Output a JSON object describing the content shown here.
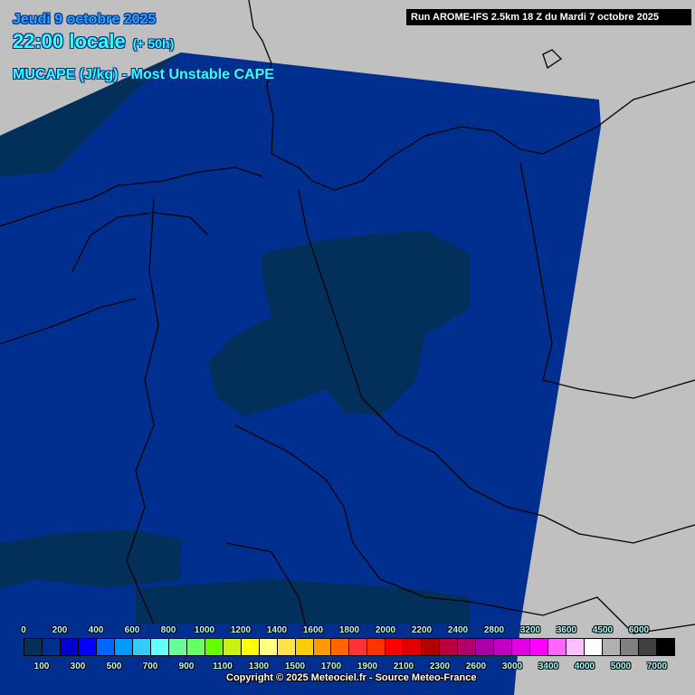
{
  "header": {
    "date": "Jeudi 9 octobre 2025",
    "time": "22:00 locale",
    "lead": "(+ 50h)",
    "parameter": "MUCAPE (J/kg) - Most Unstable CAPE",
    "run": "Run AROME-IFS 2.5km 18 Z du Mardi 7 octobre 2025"
  },
  "legend": {
    "unit": "J/kg",
    "thresholds": [
      "0",
      "100",
      "200",
      "300",
      "400",
      "500",
      "600",
      "700",
      "800",
      "900",
      "1000",
      "1100",
      "1200",
      "1300",
      "1400",
      "1500",
      "1600",
      "1700",
      "1800",
      "1900",
      "2000",
      "2100",
      "2200",
      "2300",
      "2400",
      "2600",
      "2800",
      "3000",
      "3200",
      "3400",
      "3600",
      "4000",
      "4500",
      "5000",
      "6000",
      "7000"
    ],
    "colors": [
      "#02305a",
      "#002f8f",
      "#0000cc",
      "#0000ff",
      "#0066ff",
      "#0099ff",
      "#33ccff",
      "#66ffff",
      "#66ff99",
      "#66ff66",
      "#66ff00",
      "#c6f410",
      "#ffff00",
      "#ffff80",
      "#ffe34a",
      "#ffcc00",
      "#ff9900",
      "#ff6600",
      "#ff3333",
      "#ff3300",
      "#ff0000",
      "#e00000",
      "#b00000",
      "#b8003c",
      "#b0006a",
      "#a800a8",
      "#c000c0",
      "#e000e0",
      "#ff00ff",
      "#ff66ff",
      "#ffc0ff",
      "#ffffff",
      "#b0b0b0",
      "#808080",
      "#404040",
      "#000000"
    ]
  },
  "map": {
    "background": "#c0c0c0",
    "field_color": "#002f8f",
    "low_cape_color": "#02305a",
    "region": "Germany / Benelux / Northern France"
  },
  "footer": {
    "copyright": "Copyright © 2025 Meteociel.fr - Source Meteo-France"
  }
}
